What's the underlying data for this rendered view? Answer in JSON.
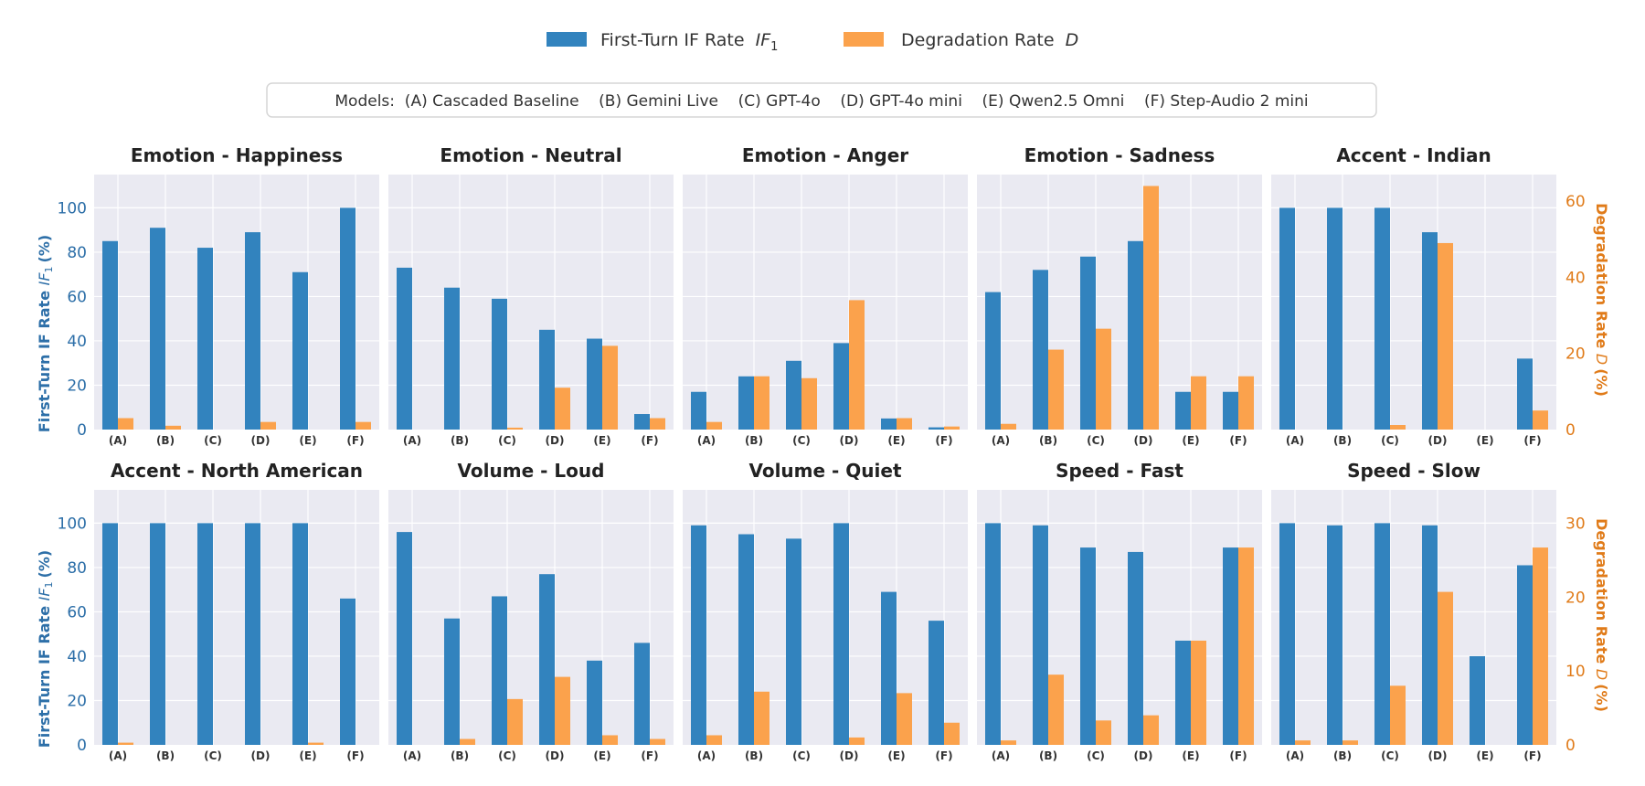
{
  "legend": {
    "if_label": "First-Turn IF Rate",
    "if_math": "IF",
    "if_sub": "1",
    "d_label": "Degradation Rate",
    "d_math": "D"
  },
  "models_box": {
    "text": "Models:  (A) Cascaded Baseline    (B) Gemini Live    (C) GPT-4o    (D) GPT-4o mini    (E) Qwen2.5 Omni    (F) Step-Audio 2 mini"
  },
  "axes": {
    "left_label": "First-Turn IF Rate",
    "left_math": "IF",
    "left_sub": "1",
    "left_unit": "(%)",
    "right_label": "Degradation Rate",
    "right_math": "D",
    "right_unit": "(%)"
  },
  "chart_data": [
    {
      "type": "bar",
      "title": "Emotion - Happiness",
      "categories": [
        "(A)",
        "(B)",
        "(C)",
        "(D)",
        "(E)",
        "(F)"
      ],
      "series": [
        {
          "name": "First-Turn IF Rate IF1",
          "axis": "left",
          "values": [
            85,
            91,
            82,
            89,
            71,
            100
          ]
        },
        {
          "name": "Degradation Rate D",
          "axis": "right",
          "values": [
            3,
            1,
            0,
            2,
            0,
            2
          ]
        }
      ],
      "ylim_left": [
        0,
        115
      ],
      "ylim_right": [
        0,
        67
      ],
      "row": 0,
      "col": 0
    },
    {
      "type": "bar",
      "title": "Emotion - Neutral",
      "categories": [
        "(A)",
        "(B)",
        "(C)",
        "(D)",
        "(E)",
        "(F)"
      ],
      "series": [
        {
          "name": "First-Turn IF Rate IF1",
          "axis": "left",
          "values": [
            73,
            64,
            59,
            45,
            41,
            7
          ]
        },
        {
          "name": "Degradation Rate D",
          "axis": "right",
          "values": [
            0,
            0,
            0.5,
            11,
            22,
            3
          ]
        }
      ],
      "ylim_left": [
        0,
        115
      ],
      "ylim_right": [
        0,
        67
      ],
      "row": 0,
      "col": 1
    },
    {
      "type": "bar",
      "title": "Emotion - Anger",
      "categories": [
        "(A)",
        "(B)",
        "(C)",
        "(D)",
        "(E)",
        "(F)"
      ],
      "series": [
        {
          "name": "First-Turn IF Rate IF1",
          "axis": "left",
          "values": [
            17,
            24,
            31,
            39,
            5,
            1
          ]
        },
        {
          "name": "Degradation Rate D",
          "axis": "right",
          "values": [
            2,
            14,
            13.5,
            34,
            3,
            0.8
          ]
        }
      ],
      "ylim_left": [
        0,
        115
      ],
      "ylim_right": [
        0,
        67
      ],
      "row": 0,
      "col": 2
    },
    {
      "type": "bar",
      "title": "Emotion - Sadness",
      "categories": [
        "(A)",
        "(B)",
        "(C)",
        "(D)",
        "(E)",
        "(F)"
      ],
      "series": [
        {
          "name": "First-Turn IF Rate IF1",
          "axis": "left",
          "values": [
            62,
            72,
            78,
            85,
            17,
            17
          ]
        },
        {
          "name": "Degradation Rate D",
          "axis": "right",
          "values": [
            1.5,
            21,
            26.5,
            64,
            14,
            14
          ]
        }
      ],
      "ylim_left": [
        0,
        115
      ],
      "ylim_right": [
        0,
        67
      ],
      "row": 0,
      "col": 3
    },
    {
      "type": "bar",
      "title": "Accent - Indian",
      "categories": [
        "(A)",
        "(B)",
        "(C)",
        "(D)",
        "(E)",
        "(F)"
      ],
      "series": [
        {
          "name": "First-Turn IF Rate IF1",
          "axis": "left",
          "values": [
            100,
            100,
            100,
            89,
            0,
            32
          ]
        },
        {
          "name": "Degradation Rate D",
          "axis": "right",
          "values": [
            0,
            0,
            1.2,
            49,
            0,
            5
          ]
        }
      ],
      "ylim_left": [
        0,
        115
      ],
      "ylim_right": [
        0,
        67
      ],
      "row": 0,
      "col": 4
    },
    {
      "type": "bar",
      "title": "Accent - North American",
      "categories": [
        "(A)",
        "(B)",
        "(C)",
        "(D)",
        "(E)",
        "(F)"
      ],
      "series": [
        {
          "name": "First-Turn IF Rate IF1",
          "axis": "left",
          "values": [
            100,
            100,
            100,
            100,
            100,
            66
          ]
        },
        {
          "name": "Degradation Rate D",
          "axis": "right",
          "values": [
            0.3,
            0,
            0,
            0,
            0.3,
            0
          ]
        }
      ],
      "ylim_left": [
        0,
        115
      ],
      "ylim_right": [
        0,
        34.5
      ],
      "row": 1,
      "col": 0
    },
    {
      "type": "bar",
      "title": "Volume - Loud",
      "categories": [
        "(A)",
        "(B)",
        "(C)",
        "(D)",
        "(E)",
        "(F)"
      ],
      "series": [
        {
          "name": "First-Turn IF Rate IF1",
          "axis": "left",
          "values": [
            96,
            57,
            67,
            77,
            38,
            46
          ]
        },
        {
          "name": "Degradation Rate D",
          "axis": "right",
          "values": [
            0,
            0.8,
            6.2,
            9.2,
            1.3,
            0.8
          ]
        }
      ],
      "ylim_left": [
        0,
        115
      ],
      "ylim_right": [
        0,
        34.5
      ],
      "row": 1,
      "col": 1
    },
    {
      "type": "bar",
      "title": "Volume - Quiet",
      "categories": [
        "(A)",
        "(B)",
        "(C)",
        "(D)",
        "(E)",
        "(F)"
      ],
      "series": [
        {
          "name": "First-Turn IF Rate IF1",
          "axis": "left",
          "values": [
            99,
            95,
            93,
            100,
            69,
            56
          ]
        },
        {
          "name": "Degradation Rate D",
          "axis": "right",
          "values": [
            1.3,
            7.2,
            0,
            1,
            7,
            3
          ]
        }
      ],
      "ylim_left": [
        0,
        115
      ],
      "ylim_right": [
        0,
        34.5
      ],
      "row": 1,
      "col": 2
    },
    {
      "type": "bar",
      "title": "Speed - Fast",
      "categories": [
        "(A)",
        "(B)",
        "(C)",
        "(D)",
        "(E)",
        "(F)"
      ],
      "series": [
        {
          "name": "First-Turn IF Rate IF1",
          "axis": "left",
          "values": [
            100,
            99,
            89,
            87,
            47,
            89
          ]
        },
        {
          "name": "Degradation Rate D",
          "axis": "right",
          "values": [
            0.6,
            9.5,
            3.3,
            4,
            14.1,
            26.7
          ]
        }
      ],
      "ylim_left": [
        0,
        115
      ],
      "ylim_right": [
        0,
        34.5
      ],
      "row": 1,
      "col": 3
    },
    {
      "type": "bar",
      "title": "Speed - Slow",
      "categories": [
        "(A)",
        "(B)",
        "(C)",
        "(D)",
        "(E)",
        "(F)"
      ],
      "series": [
        {
          "name": "First-Turn IF Rate IF1",
          "axis": "left",
          "values": [
            100,
            99,
            100,
            99,
            40,
            81
          ]
        },
        {
          "name": "Degradation Rate D",
          "axis": "right",
          "values": [
            0.6,
            0.6,
            8,
            20.7,
            0,
            26.7
          ]
        }
      ],
      "ylim_left": [
        0,
        115
      ],
      "ylim_right": [
        0,
        34.5
      ],
      "row": 1,
      "col": 4
    }
  ],
  "ticks": {
    "left": [
      0,
      20,
      40,
      60,
      80,
      100
    ],
    "right_top": [
      0,
      20,
      40,
      60
    ],
    "right_bottom": [
      0,
      10,
      20,
      30
    ]
  },
  "colors": {
    "if_bar": "#3283be",
    "d_bar": "#fba24c",
    "panel_bg": "#eaeaf2",
    "grid": "#ffffff",
    "left_axis": "#2d6fa8",
    "right_axis": "#e07b19"
  }
}
